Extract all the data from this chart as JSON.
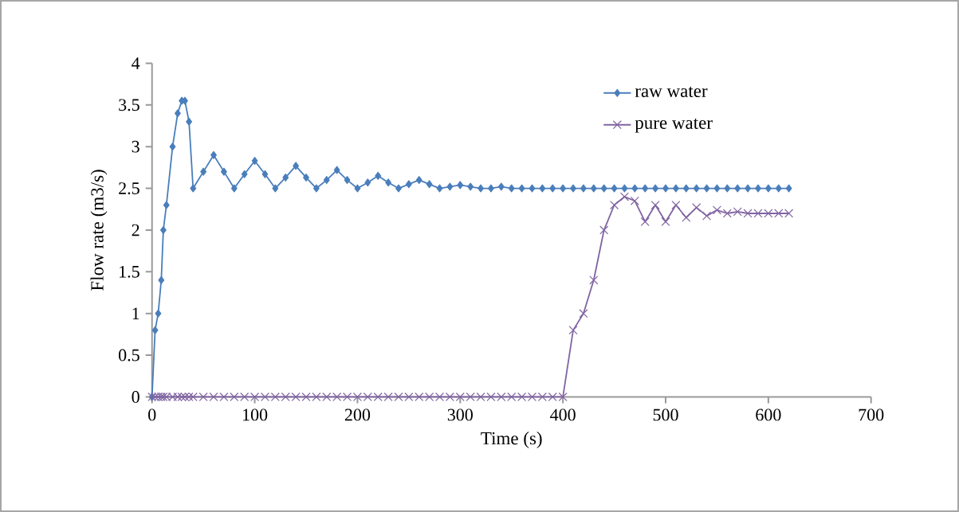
{
  "chart_data": {
    "type": "line",
    "xlabel": "Time (s)",
    "ylabel": "Flow rate (m3/s)",
    "xlim": [
      0,
      700
    ],
    "xticks": [
      0,
      100,
      200,
      300,
      400,
      500,
      600,
      700
    ],
    "ylim": [
      0,
      4
    ],
    "yticks": [
      0,
      0.5,
      1,
      1.5,
      2,
      2.5,
      3,
      3.5,
      4
    ],
    "grid": false,
    "legend": "top right",
    "series": [
      {
        "name": "raw water",
        "color": "#4a7ebb",
        "marker": "diamond",
        "x": [
          0,
          3,
          6,
          9,
          11,
          14,
          20,
          25,
          29,
          32,
          36,
          40,
          50,
          60,
          70,
          80,
          90,
          100,
          110,
          120,
          130,
          140,
          150,
          160,
          170,
          180,
          190,
          200,
          210,
          220,
          230,
          240,
          250,
          260,
          270,
          280,
          290,
          300,
          310,
          320,
          330,
          340,
          350,
          360,
          370,
          380,
          390,
          400,
          410,
          420,
          430,
          440,
          450,
          460,
          470,
          480,
          490,
          500,
          510,
          520,
          530,
          540,
          550,
          560,
          570,
          580,
          590,
          600,
          610,
          620
        ],
        "values": [
          0,
          0.8,
          1.0,
          1.4,
          2.0,
          2.3,
          3.0,
          3.4,
          3.55,
          3.55,
          3.3,
          2.5,
          2.7,
          2.9,
          2.7,
          2.5,
          2.67,
          2.83,
          2.67,
          2.5,
          2.63,
          2.77,
          2.63,
          2.5,
          2.6,
          2.72,
          2.6,
          2.5,
          2.57,
          2.65,
          2.57,
          2.5,
          2.55,
          2.6,
          2.55,
          2.5,
          2.52,
          2.54,
          2.52,
          2.5,
          2.5,
          2.52,
          2.5,
          2.5,
          2.5,
          2.5,
          2.5,
          2.5,
          2.5,
          2.5,
          2.5,
          2.5,
          2.5,
          2.5,
          2.5,
          2.5,
          2.5,
          2.5,
          2.5,
          2.5,
          2.5,
          2.5,
          2.5,
          2.5,
          2.5,
          2.5,
          2.5,
          2.5,
          2.5,
          2.5
        ]
      },
      {
        "name": "pure water",
        "color": "#8064a2",
        "marker": "cross",
        "x": [
          0,
          3,
          6,
          9,
          11,
          14,
          20,
          25,
          29,
          32,
          36,
          40,
          50,
          60,
          70,
          80,
          90,
          100,
          110,
          120,
          130,
          140,
          150,
          160,
          170,
          180,
          190,
          200,
          210,
          220,
          230,
          240,
          250,
          260,
          270,
          280,
          290,
          300,
          310,
          320,
          330,
          340,
          350,
          360,
          370,
          380,
          390,
          400,
          410,
          420,
          430,
          440,
          450,
          460,
          470,
          480,
          490,
          500,
          510,
          520,
          530,
          540,
          550,
          560,
          570,
          580,
          590,
          600,
          610,
          620
        ],
        "values": [
          0,
          0,
          0,
          0,
          0,
          0,
          0,
          0,
          0,
          0,
          0,
          0,
          0,
          0,
          0,
          0,
          0,
          0,
          0,
          0,
          0,
          0,
          0,
          0,
          0,
          0,
          0,
          0,
          0,
          0,
          0,
          0,
          0,
          0,
          0,
          0,
          0,
          0,
          0,
          0,
          0,
          0,
          0,
          0,
          0,
          0,
          0,
          0,
          0.8,
          1.0,
          1.4,
          2.0,
          2.3,
          2.4,
          2.35,
          2.1,
          2.3,
          2.1,
          2.3,
          2.15,
          2.27,
          2.17,
          2.24,
          2.2,
          2.22,
          2.2,
          2.2,
          2.2,
          2.2,
          2.2
        ]
      }
    ]
  }
}
